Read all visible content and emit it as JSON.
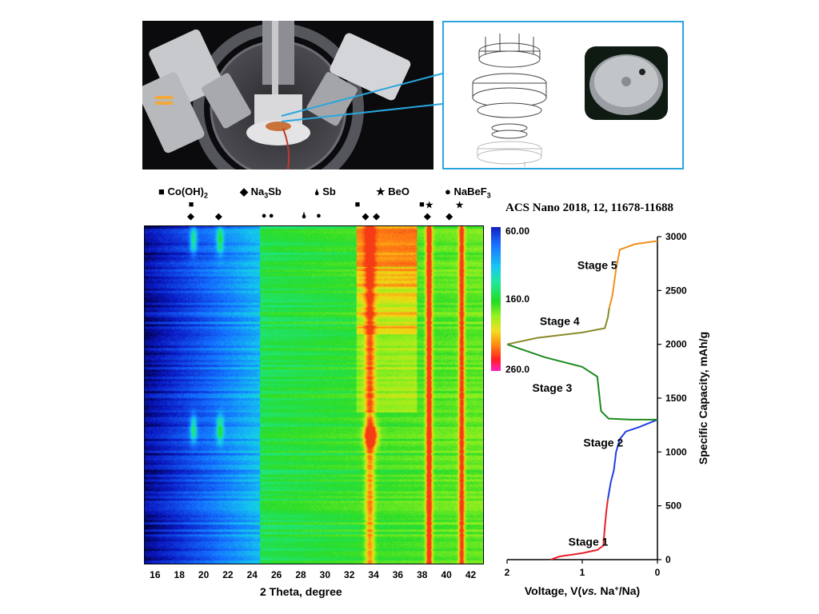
{
  "citation": "ACS Nano 2018, 12, 11678-11688",
  "legend": [
    {
      "symbol": "■",
      "label": "Co(OH)",
      "sub": "2",
      "label_after": ""
    },
    {
      "symbol": "◆",
      "label": "Na",
      "sub": "3",
      "label_after": "Sb"
    },
    {
      "symbol": "🌢",
      "label": "Sb",
      "sub": "",
      "label_after": ""
    },
    {
      "symbol": "★",
      "label": "BeO",
      "sub": "",
      "label_after": ""
    },
    {
      "symbol": "●",
      "label": "NaBeF",
      "sub": "3",
      "label_after": ""
    }
  ],
  "peak_markers": [
    {
      "symbol": "■",
      "x": 19.0,
      "row": 1
    },
    {
      "symbol": "◆",
      "x": 18.9,
      "row": 2
    },
    {
      "symbol": "◆",
      "x": 21.2,
      "row": 2
    },
    {
      "symbol": "●",
      "x": 25.0,
      "row": 2
    },
    {
      "symbol": "●",
      "x": 25.6,
      "row": 2
    },
    {
      "symbol": "🌢",
      "x": 28.3,
      "row": 2
    },
    {
      "symbol": "●",
      "x": 29.5,
      "row": 2
    },
    {
      "symbol": "■",
      "x": 32.7,
      "row": 1
    },
    {
      "symbol": "◆",
      "x": 33.3,
      "row": 2
    },
    {
      "symbol": "◆",
      "x": 34.2,
      "row": 2
    },
    {
      "symbol": "■",
      "x": 38.0,
      "row": 1
    },
    {
      "symbol": "★",
      "x": 38.5,
      "row": 1
    },
    {
      "symbol": "◆",
      "x": 38.4,
      "row": 2
    },
    {
      "symbol": "◆",
      "x": 40.2,
      "row": 2
    },
    {
      "symbol": "★",
      "x": 41.0,
      "row": 1
    }
  ],
  "colorbar": {
    "labels": [
      "60.00",
      "160.0",
      "260.0"
    ],
    "values": [
      60,
      160,
      260
    ]
  },
  "chart_data": [
    {
      "type": "heatmap",
      "xlabel": "2 Theta, degree",
      "xlim": [
        15,
        43
      ],
      "x_ticks": [
        16,
        18,
        20,
        22,
        24,
        26,
        28,
        30,
        32,
        34,
        36,
        38,
        40,
        42
      ],
      "y_range_capacity": [
        0,
        3000
      ],
      "zlim": [
        60,
        260
      ],
      "bright_lines_2theta": [
        33.3,
        34.0,
        38.5,
        41.2
      ]
    },
    {
      "type": "line",
      "xlabel": "Voltage, V(vs. Na+/Na)",
      "xlabel_parts": {
        "a": "Voltage, V(",
        "b": "vs.",
        "c": " Na",
        "sup": "+",
        "d": "/Na)"
      },
      "ylabel": "Specific Capacity, mAh/g",
      "xlim": [
        2,
        0
      ],
      "ylim": [
        0,
        3000
      ],
      "x_ticks": [
        "2",
        "1",
        "0"
      ],
      "y_ticks": [
        "0",
        "500",
        "1000",
        "1500",
        "2000",
        "2500",
        "3000"
      ],
      "series": [
        {
          "stage": "Stage 1",
          "color": "#e8202a",
          "points": [
            [
              1.42,
              0
            ],
            [
              1.3,
              30
            ],
            [
              1.0,
              60
            ],
            [
              0.8,
              90
            ],
            [
              0.72,
              130
            ],
            [
              0.7,
              300
            ],
            [
              0.68,
              450
            ],
            [
              0.66,
              560
            ]
          ]
        },
        {
          "stage": "Stage 2",
          "color": "#2040e0",
          "points": [
            [
              0.66,
              560
            ],
            [
              0.62,
              720
            ],
            [
              0.58,
              830
            ],
            [
              0.55,
              1000
            ],
            [
              0.5,
              1120
            ],
            [
              0.42,
              1190
            ],
            [
              0.25,
              1230
            ],
            [
              0.0,
              1300
            ]
          ]
        },
        {
          "stage": "Stage 3",
          "color": "#1e8a1e",
          "points": [
            [
              0.0,
              1300
            ],
            [
              0.35,
              1300
            ],
            [
              0.65,
              1310
            ],
            [
              0.75,
              1380
            ],
            [
              0.8,
              1700
            ],
            [
              1.0,
              1790
            ],
            [
              1.5,
              1880
            ],
            [
              2.0,
              2000
            ]
          ]
        },
        {
          "stage": "Stage 4",
          "color": "#8a8a2a",
          "points": [
            [
              2.0,
              2000
            ],
            [
              1.6,
              2060
            ],
            [
              1.0,
              2110
            ],
            [
              0.7,
              2150
            ],
            [
              0.66,
              2250
            ],
            [
              0.64,
              2340
            ]
          ]
        },
        {
          "stage": "Stage 5",
          "color": "#f0901a",
          "points": [
            [
              0.64,
              2340
            ],
            [
              0.6,
              2450
            ],
            [
              0.55,
              2700
            ],
            [
              0.5,
              2880
            ],
            [
              0.3,
              2930
            ],
            [
              0.0,
              2960
            ]
          ]
        }
      ],
      "stage_labels": [
        "Stage 1",
        "Stage 2",
        "Stage 3",
        "Stage 4",
        "Stage 5"
      ]
    }
  ]
}
